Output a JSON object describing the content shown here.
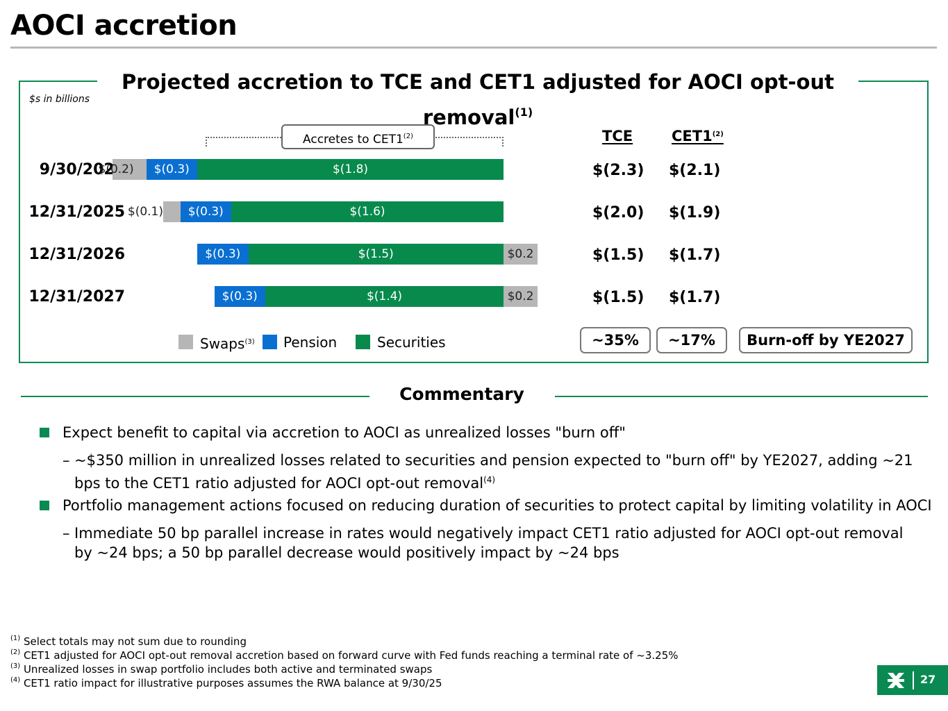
{
  "page": {
    "title": "AOCI accretion",
    "page_number": "27"
  },
  "chart_data": {
    "type": "bar",
    "orientation": "horizontal-stacked",
    "title": "Projected accretion to TCE and CET1 adjusted for AOCI opt-out removal",
    "title_sup": "(1)",
    "units_note": "$s in billions",
    "accretes_label": "Accretes to CET1",
    "accretes_sup": "(2)",
    "categories": [
      "9/30/2025",
      "12/31/2025",
      "12/31/2026",
      "12/31/2027"
    ],
    "series": [
      {
        "name": "Swaps",
        "values": [
          -0.2,
          -0.1,
          0.2,
          0.2
        ],
        "labels": [
          "$(0.2)",
          "$(0.1)",
          "$0.2",
          "$0.2"
        ],
        "color": "#b6b6b6"
      },
      {
        "name": "Pension",
        "values": [
          -0.3,
          -0.3,
          -0.3,
          -0.3
        ],
        "labels": [
          "$(0.3)",
          "$(0.3)",
          "$(0.3)",
          "$(0.3)"
        ],
        "color": "#0a6fd1"
      },
      {
        "name": "Securities",
        "values": [
          -1.8,
          -1.6,
          -1.5,
          -1.4
        ],
        "labels": [
          "$(1.8)",
          "$(1.6)",
          "$(1.5)",
          "$(1.4)"
        ],
        "color": "#098a4d"
      }
    ],
    "legend": {
      "placement": "bottom",
      "swaps_label": "Swaps",
      "swaps_sup": "(3)",
      "pension_label": "Pension",
      "securities_label": "Securities"
    },
    "columns": {
      "tce_header": "TCE",
      "cet1_header": "CET1",
      "cet1_sup": "(2)",
      "tce": [
        "$(2.3)",
        "$(2.0)",
        "$(1.5)",
        "$(1.5)"
      ],
      "cet1": [
        "$(2.1)",
        "$(1.9)",
        "$(1.7)",
        "$(1.7)"
      ],
      "tce_change": "~35%",
      "cet1_change": "~17%",
      "burn_off": "Burn-off by YE2027"
    }
  },
  "commentary": {
    "title": "Commentary",
    "bullets": [
      {
        "text": "Expect benefit to capital via accretion to AOCI as unrealized losses \"burn off\"",
        "sub_text": "~$350 million in unrealized losses related to securities and pension expected to \"burn off\" by YE2027, adding ~21 bps to the CET1 ratio adjusted for AOCI opt-out removal",
        "sub_sup": "(4)"
      },
      {
        "text": "Portfolio management actions focused on reducing duration of securities to protect capital by limiting volatility in AOCI",
        "sub_text": "Immediate 50 bp parallel increase in rates would negatively impact CET1 ratio adjusted for AOCI opt-out removal by ~24 bps; a 50 bp parallel decrease would positively impact by ~24 bps",
        "sub_sup": ""
      }
    ],
    "dash": "–"
  },
  "footnotes": [
    {
      "sup": "(1)",
      "text": "Select totals may not sum due to rounding"
    },
    {
      "sup": "(2)",
      "text": "CET1 adjusted for AOCI opt-out removal accretion based on forward curve with Fed funds reaching a terminal rate of ~3.25%"
    },
    {
      "sup": "(3)",
      "text": "Unrealized losses in swap portfolio includes both active and terminated swaps"
    },
    {
      "sup": "(4)",
      "text": "CET1 ratio impact for illustrative purposes assumes the RWA balance at 9/30/25"
    }
  ],
  "logo": {
    "icon": "bank-logo-icon"
  }
}
